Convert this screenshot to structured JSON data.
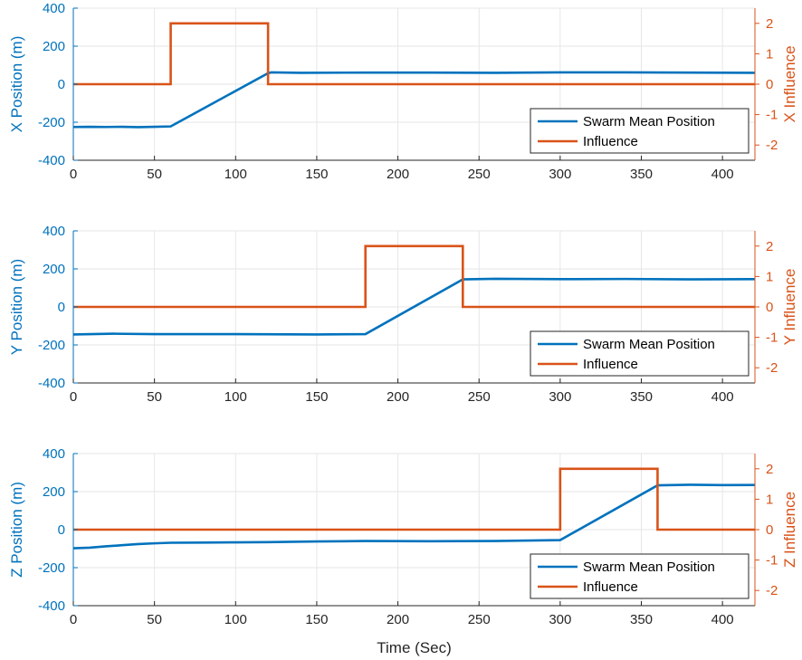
{
  "colors": {
    "position": "#0072BD",
    "influence": "#D95319",
    "left_axis": "#0072BD",
    "right_axis": "#D95319",
    "grid": "#e6e6e6",
    "axis": "#262626"
  },
  "chart_data": [
    {
      "type": "line",
      "xlabel": "",
      "ylabel": "X Position (m)",
      "y2label": "X Influence",
      "xlim": [
        0,
        420
      ],
      "ylim": [
        -400,
        400
      ],
      "y2lim": [
        -2.5,
        2.5
      ],
      "xticks": [
        0,
        50,
        100,
        150,
        200,
        250,
        300,
        350,
        400
      ],
      "yticks": [
        -400,
        -200,
        0,
        200,
        400
      ],
      "y2ticks": [
        -2,
        -1,
        0,
        1,
        2
      ],
      "grid": true,
      "legend": {
        "placement": "bottom-right",
        "entries": [
          "Swarm Mean Position",
          "Influence"
        ]
      },
      "series": [
        {
          "name": "Swarm Mean Position",
          "axis": "left",
          "x": [
            0,
            10,
            20,
            30,
            40,
            50,
            60,
            120,
            122,
            140,
            180,
            220,
            260,
            300,
            340,
            380,
            420
          ],
          "y": [
            -225,
            -224,
            -225,
            -224,
            -226,
            -224,
            -222,
            58,
            62,
            60,
            61,
            61,
            60,
            62,
            62,
            61,
            60
          ]
        },
        {
          "name": "Influence",
          "axis": "right",
          "x": [
            0,
            60,
            60,
            120,
            120,
            420
          ],
          "y": [
            0,
            0,
            2,
            2,
            0,
            0
          ]
        }
      ]
    },
    {
      "type": "line",
      "xlabel": "",
      "ylabel": "Y Position (m)",
      "y2label": "Y Influence",
      "xlim": [
        0,
        420
      ],
      "ylim": [
        -400,
        400
      ],
      "y2lim": [
        -2.5,
        2.5
      ],
      "xticks": [
        0,
        50,
        100,
        150,
        200,
        250,
        300,
        350,
        400
      ],
      "yticks": [
        -400,
        -200,
        0,
        200,
        400
      ],
      "y2ticks": [
        -2,
        -1,
        0,
        1,
        2
      ],
      "grid": true,
      "legend": {
        "placement": "bottom-right",
        "entries": [
          "Swarm Mean Position",
          "Influence"
        ]
      },
      "series": [
        {
          "name": "Swarm Mean Position",
          "axis": "left",
          "x": [
            0,
            25,
            50,
            100,
            150,
            180,
            240,
            260,
            300,
            340,
            380,
            420
          ],
          "y": [
            -145,
            -141,
            -143,
            -143,
            -145,
            -143,
            145,
            148,
            146,
            147,
            145,
            146
          ]
        },
        {
          "name": "Influence",
          "axis": "right",
          "x": [
            0,
            180,
            180,
            240,
            240,
            420
          ],
          "y": [
            0,
            0,
            2,
            2,
            0,
            0
          ]
        }
      ]
    },
    {
      "type": "line",
      "xlabel": "Time (Sec)",
      "ylabel": "Z Position (m)",
      "y2label": "Z Influence",
      "xlim": [
        0,
        420
      ],
      "ylim": [
        -400,
        400
      ],
      "y2lim": [
        -2.5,
        2.5
      ],
      "xticks": [
        0,
        50,
        100,
        150,
        200,
        250,
        300,
        350,
        400
      ],
      "yticks": [
        -400,
        -200,
        0,
        200,
        400
      ],
      "y2ticks": [
        -2,
        -1,
        0,
        1,
        2
      ],
      "grid": true,
      "legend": {
        "placement": "bottom-right",
        "entries": [
          "Swarm Mean Position",
          "Influence"
        ]
      },
      "series": [
        {
          "name": "Swarm Mean Position",
          "axis": "left",
          "x": [
            0,
            10,
            20,
            30,
            40,
            50,
            60,
            80,
            100,
            120,
            150,
            180,
            220,
            260,
            300,
            360,
            380,
            400,
            420
          ],
          "y": [
            -98,
            -95,
            -88,
            -82,
            -76,
            -72,
            -69,
            -68,
            -67,
            -66,
            -62,
            -60,
            -61,
            -60,
            -55,
            233,
            236,
            234,
            235
          ]
        },
        {
          "name": "Influence",
          "axis": "right",
          "x": [
            0,
            300,
            300,
            360,
            360,
            420
          ],
          "y": [
            0,
            0,
            2,
            2,
            0,
            0
          ]
        }
      ]
    }
  ]
}
